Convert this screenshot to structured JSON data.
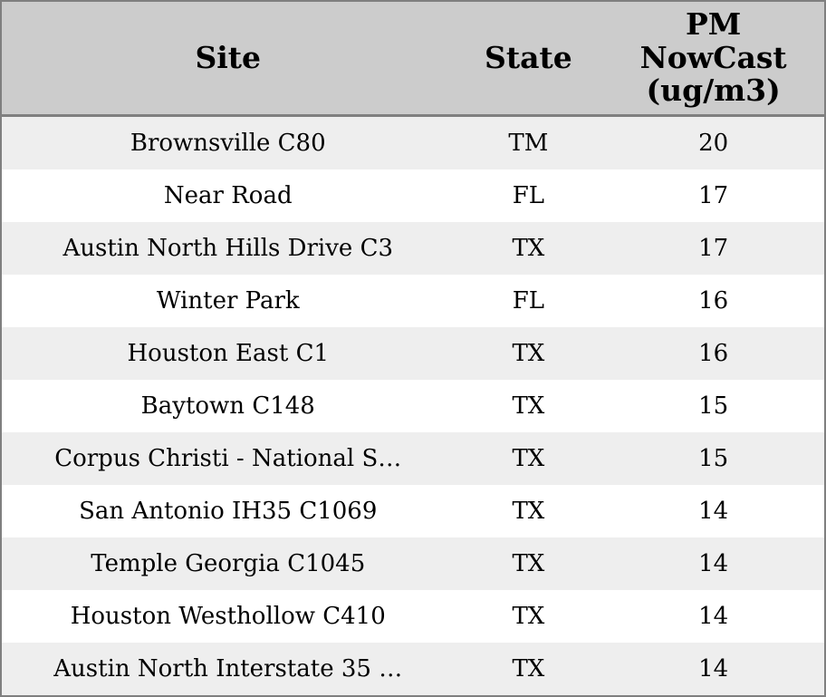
{
  "chart_data": {
    "type": "table",
    "title": "",
    "columns": [
      "Site",
      "State",
      "PM NowCast (ug/m3)"
    ],
    "rows": [
      [
        "Brownsville C80",
        "TM",
        "20"
      ],
      [
        "Near Road",
        "FL",
        "17"
      ],
      [
        "Austin North Hills Drive C3",
        "TX",
        "17"
      ],
      [
        "Winter Park",
        "FL",
        "16"
      ],
      [
        "Houston East C1",
        "TX",
        "16"
      ],
      [
        "Baytown C148",
        "TX",
        "15"
      ],
      [
        "Corpus Christi - National S…",
        "TX",
        "15"
      ],
      [
        "San Antonio IH35 C1069",
        "TX",
        "14"
      ],
      [
        "Temple Georgia C1045",
        "TX",
        "14"
      ],
      [
        "Houston Westhollow C410",
        "TX",
        "14"
      ],
      [
        "Austin North Interstate 35 …",
        "TX",
        "14"
      ]
    ],
    "layout": {
      "striped": true,
      "header_position": "top",
      "alignment": "center"
    }
  },
  "header": {
    "site": "Site",
    "state": "State",
    "pm": "PM\nNowCast\n(ug/m3)"
  },
  "rows": [
    {
      "site": "Brownsville C80",
      "state": "TM",
      "pm": "20"
    },
    {
      "site": "Near Road",
      "state": "FL",
      "pm": "17"
    },
    {
      "site": "Austin North Hills Drive C3",
      "state": "TX",
      "pm": "17"
    },
    {
      "site": "Winter Park",
      "state": "FL",
      "pm": "16"
    },
    {
      "site": "Houston East C1",
      "state": "TX",
      "pm": "16"
    },
    {
      "site": "Baytown C148",
      "state": "TX",
      "pm": "15"
    },
    {
      "site": "Corpus Christi - National S…",
      "state": "TX",
      "pm": "15"
    },
    {
      "site": "San Antonio IH35 C1069",
      "state": "TX",
      "pm": "14"
    },
    {
      "site": "Temple Georgia C1045",
      "state": "TX",
      "pm": "14"
    },
    {
      "site": "Houston Westhollow C410",
      "state": "TX",
      "pm": "14"
    },
    {
      "site": "Austin North Interstate 35 …",
      "state": "TX",
      "pm": "14"
    }
  ],
  "colors": {
    "header_bg": "#cccccc",
    "stripe_bg": "#eeeeee",
    "row_bg": "#ffffff",
    "border": "#7f7f7f",
    "text": "#000000"
  }
}
